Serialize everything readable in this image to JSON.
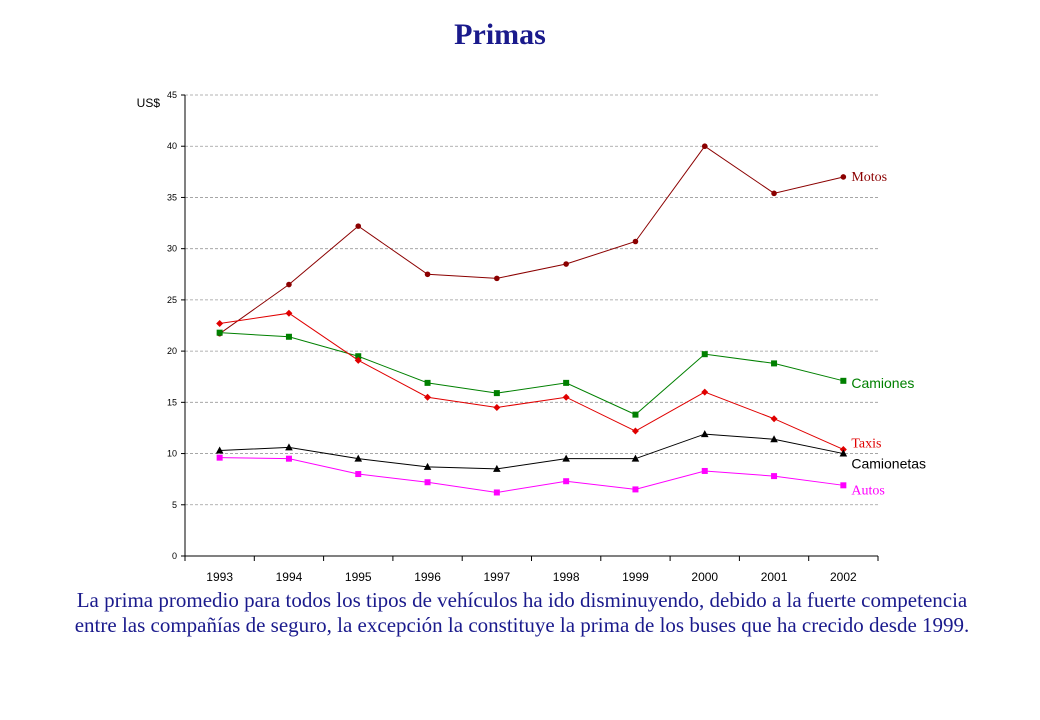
{
  "title": "Primas",
  "caption": "La prima promedio para todos los tipos de vehículos ha ido disminuyendo, debido a la fuerte competencia entre las compañías de seguro, la excepción la constituye la prima de los buses que ha crecido desde 1999.",
  "chart_data": {
    "type": "line",
    "title": "Primas",
    "xlabel": "",
    "ylabel": "US$",
    "ylim": [
      0,
      45
    ],
    "yticks": [
      0,
      5,
      10,
      15,
      20,
      25,
      30,
      35,
      40,
      45
    ],
    "grid": true,
    "legend": "inline-right",
    "categories": [
      "1993",
      "1994",
      "1995",
      "1996",
      "1997",
      "1998",
      "1999",
      "2000",
      "2001",
      "2002"
    ],
    "series": [
      {
        "name": "Motos",
        "color": "#8b0000",
        "marker": "circle",
        "values": [
          21.7,
          26.5,
          32.2,
          27.5,
          27.1,
          28.5,
          30.7,
          40.0,
          35.4,
          37.0
        ]
      },
      {
        "name": "Camiones",
        "color": "#008000",
        "marker": "square",
        "values": [
          21.8,
          21.4,
          19.5,
          16.9,
          15.9,
          16.9,
          13.8,
          19.7,
          18.8,
          17.1
        ]
      },
      {
        "name": "Taxis",
        "color": "#e00000",
        "marker": "diamond",
        "values": [
          22.7,
          23.7,
          19.1,
          15.5,
          14.5,
          15.5,
          12.2,
          16.0,
          13.4,
          10.4
        ]
      },
      {
        "name": "Camionetas",
        "color": "#000000",
        "marker": "triangle",
        "values": [
          10.3,
          10.6,
          9.5,
          8.7,
          8.5,
          9.5,
          9.5,
          11.9,
          11.4,
          10.0
        ]
      },
      {
        "name": "Autos",
        "color": "#ff00ff",
        "marker": "square",
        "values": [
          9.6,
          9.5,
          8.0,
          7.2,
          6.2,
          7.3,
          6.5,
          8.3,
          7.8,
          6.9
        ]
      }
    ]
  }
}
